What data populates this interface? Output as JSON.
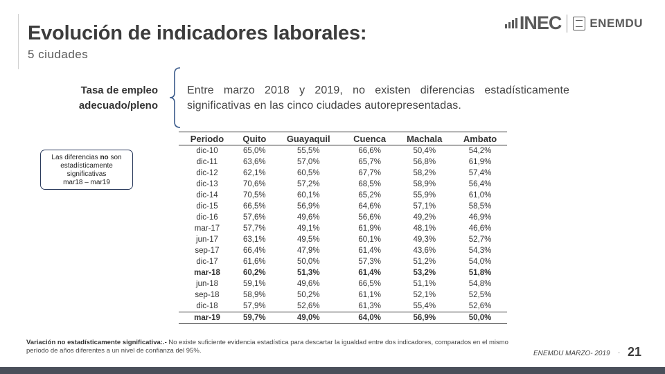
{
  "header": {
    "title": "Evolución de indicadores laborales:",
    "subtitle": "5 ciudades",
    "logo_inec": "INEC",
    "logo_enemdu": "ENEMDU"
  },
  "indicator": {
    "label_line1": "Tasa de empleo",
    "label_line2": "adecuado/pleno",
    "description": "Entre marzo 2018 y 2019, no existen diferencias estadísticamente significativas en las cinco ciudades autorepresentadas."
  },
  "note": {
    "line1_pre": "Las diferencias ",
    "line1_bold": "no",
    "line1_post": " son",
    "line2": "estadísticamente",
    "line3": "significativas",
    "line4": "mar18 – mar19"
  },
  "table": {
    "headers": [
      "Periodo",
      "Quito",
      "Guayaquil",
      "Cuenca",
      "Machala",
      "Ambato"
    ],
    "rows": [
      [
        "dic-10",
        "65,0%",
        "55,5%",
        "66,6%",
        "50,4%",
        "54,2%"
      ],
      [
        "dic-11",
        "63,6%",
        "57,0%",
        "65,7%",
        "56,8%",
        "61,9%"
      ],
      [
        "dic-12",
        "62,1%",
        "60,5%",
        "67,7%",
        "58,2%",
        "57,4%"
      ],
      [
        "dic-13",
        "70,6%",
        "57,2%",
        "68,5%",
        "58,9%",
        "56,4%"
      ],
      [
        "dic-14",
        "70,5%",
        "60,1%",
        "65,2%",
        "55,9%",
        "61,0%"
      ],
      [
        "dic-15",
        "66,5%",
        "56,9%",
        "64,6%",
        "57,1%",
        "58,5%"
      ],
      [
        "dic-16",
        "57,6%",
        "49,6%",
        "56,6%",
        "49,2%",
        "46,9%"
      ],
      [
        "mar-17",
        "57,7%",
        "49,1%",
        "61,9%",
        "48,1%",
        "46,6%"
      ],
      [
        "jun-17",
        "63,1%",
        "49,5%",
        "60,1%",
        "49,3%",
        "52,7%"
      ],
      [
        "sep-17",
        "66,4%",
        "47,9%",
        "61,4%",
        "43,6%",
        "54,3%"
      ],
      [
        "dic-17",
        "61,6%",
        "50,0%",
        "57,3%",
        "51,2%",
        "54,0%"
      ],
      [
        "mar-18",
        "60,2%",
        "51,3%",
        "61,4%",
        "53,2%",
        "51,8%"
      ],
      [
        "jun-18",
        "59,1%",
        "49,6%",
        "66,5%",
        "51,1%",
        "54,8%"
      ],
      [
        "sep-18",
        "58,9%",
        "50,2%",
        "61,1%",
        "52,1%",
        "52,5%"
      ],
      [
        "dic-18",
        "57,9%",
        "52,6%",
        "61,3%",
        "55,4%",
        "52,6%"
      ],
      [
        "mar-19",
        "59,7%",
        "49,0%",
        "64,0%",
        "56,9%",
        "50,0%"
      ]
    ]
  },
  "footnote": {
    "bold": "Variación no estadísticamente significativa:.-",
    "text": " No existe suficiente evidencia estadística para descartar la igualdad entre dos indicadores, comparados en el mismo período de años diferentes a un nivel de confianza del 95%."
  },
  "footer": {
    "source": "ENEMDU MARZO- 2019",
    "dot": "·",
    "page": "21"
  }
}
